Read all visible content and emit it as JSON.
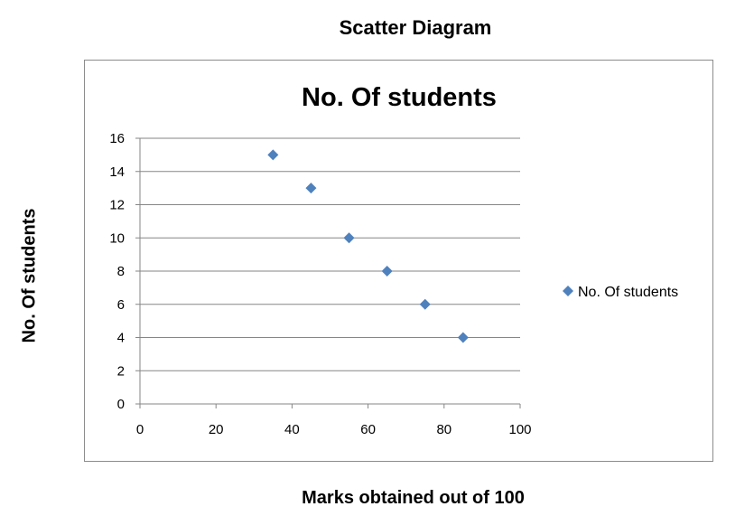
{
  "page": {
    "title": "Scatter Diagram",
    "y_label": "No. Of students",
    "x_label": "Marks obtained out of 100"
  },
  "chart_data": {
    "type": "scatter",
    "title": "No. Of students",
    "xlabel": "Marks obtained out of 100",
    "ylabel": "No. Of students",
    "xlim": [
      0,
      100
    ],
    "ylim": [
      0,
      16
    ],
    "x_ticks": [
      0,
      20,
      40,
      60,
      80,
      100
    ],
    "y_ticks": [
      0,
      2,
      4,
      6,
      8,
      10,
      12,
      14,
      16
    ],
    "grid": "horizontal",
    "legend": "right",
    "series": [
      {
        "name": "No. Of students",
        "color": "#4f81bd",
        "marker": "diamond",
        "x": [
          35,
          45,
          55,
          65,
          75,
          85
        ],
        "y": [
          15,
          13,
          10,
          8,
          6,
          4
        ]
      }
    ]
  }
}
